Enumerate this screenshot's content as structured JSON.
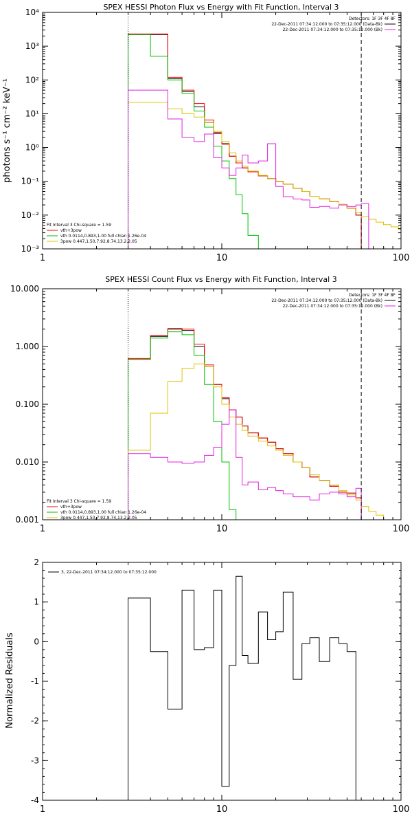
{
  "chart_data": [
    {
      "type": "line",
      "title": "SPEX HESSI Photon Flux vs Energy with Fit Function, Interval 3",
      "xlabel": "",
      "ylabel": "photons s⁻¹ cm⁻² keV⁻¹",
      "xscale": "log",
      "yscale": "log",
      "xlim": [
        1,
        100
      ],
      "ylim": [
        0.001,
        10000
      ],
      "xticks": [
        {
          "v": 1,
          "label": "1"
        },
        {
          "v": 10,
          "label": "10"
        },
        {
          "v": 100,
          "label": "100"
        }
      ],
      "yticks": [
        {
          "v": 0.001,
          "label": "10⁻³"
        },
        {
          "v": 0.01,
          "label": "10⁻²"
        },
        {
          "v": 0.1,
          "label": "10⁻¹"
        },
        {
          "v": 1,
          "label": "10⁰"
        },
        {
          "v": 10,
          "label": "10¹"
        },
        {
          "v": 100,
          "label": "10²"
        },
        {
          "v": 1000,
          "label": "10³"
        },
        {
          "v": 10000,
          "label": "10⁴"
        }
      ],
      "vlines": [
        {
          "x": 3,
          "style": "dotted"
        },
        {
          "x": 60,
          "style": "dashed"
        }
      ],
      "legend_top": {
        "position": "top-right",
        "header": "Detectors: 1F 3F 4F 8F",
        "entries": [
          {
            "label": "22-Dec-2011 07:34:12.000 to 07:35:12.000 (Data-Bk)",
            "color": "#000000"
          },
          {
            "label": "22-Dec-2011 07:34:12.000 to 07:35:12.000 (Bk)",
            "color": "#e020e0"
          }
        ]
      },
      "legend_bottom": {
        "position": "bottom-left",
        "header": "Fit Interval 3   Chi-square = 1.59",
        "entries": [
          {
            "label": "vth+3pow",
            "color": "#ff0000"
          },
          {
            "label": "vth 0.0114,0.893,1.00  full chian 1.26e-04",
            "color": "#00c000"
          },
          {
            "label": "3pow 0.447,1.50,7.92,8.74,13.2,2.05",
            "color": "#e0c000"
          }
        ]
      },
      "bin_edges": [
        3,
        4,
        5,
        6,
        7,
        8,
        9,
        10,
        11,
        12,
        13,
        14,
        16,
        18,
        20,
        22,
        25,
        28,
        31,
        35,
        40,
        45,
        50,
        56,
        60
      ],
      "series": [
        {
          "name": "Data-Bk",
          "color": "#000000",
          "values": [
            2200,
            2200,
            110,
            45,
            16,
            5.5,
            2.6,
            1.3,
            0.55,
            0.35,
            0.25,
            0.19,
            0.145,
            0.12,
            0.1,
            0.082,
            0.062,
            0.05,
            0.036,
            0.03,
            0.025,
            0.021,
            0.016,
            0.01
          ]
        },
        {
          "name": "vth+3pow",
          "color": "#ff0000",
          "values": [
            2300,
            2300,
            120,
            50,
            20,
            6.5,
            2.8,
            1.25,
            0.55,
            0.35,
            0.25,
            0.19,
            0.145,
            0.12,
            0.1,
            0.082,
            0.062,
            0.05,
            0.036,
            0.03,
            0.025,
            0.021,
            0.016,
            0.01
          ]
        },
        {
          "name": "vth",
          "color": "#00c000",
          "values": [
            2200,
            500,
            100,
            40,
            12,
            4,
            1.1,
            0.4,
            0.12,
            0.04,
            0.011,
            0.0025,
            0.0009
          ]
        },
        {
          "name": "3pow",
          "color": "#e0c000",
          "values": [
            22,
            22,
            14,
            10,
            8,
            5.5,
            3,
            1.5,
            0.7,
            0.4,
            0.28,
            0.2,
            0.15,
            0.12,
            0.1,
            0.082,
            0.062,
            0.05,
            0.036,
            0.03,
            0.025,
            0.021,
            0.016,
            0.012,
            0.009,
            0.0075,
            0.0062,
            0.0052,
            0.0045,
            0.0038,
            0.0032
          ]
        },
        {
          "name": "Bk",
          "color": "#e020e0",
          "values": [
            50,
            50,
            7,
            2,
            1.5,
            2.5,
            0.5,
            0.25,
            0.15,
            0.25,
            0.6,
            0.35,
            0.4,
            1.3,
            0.07,
            0.035,
            0.03,
            0.028,
            0.017,
            0.018,
            0.016,
            0.02,
            0.018,
            0.02,
            0.022
          ]
        }
      ]
    },
    {
      "type": "line",
      "title": "SPEX HESSI Count Flux vs Energy with Fit Function, Interval 3",
      "xlabel": "",
      "ylabel": "",
      "xscale": "log",
      "yscale": "log",
      "xlim": [
        1,
        100
      ],
      "ylim": [
        0.001,
        10
      ],
      "xticks": [
        {
          "v": 1,
          "label": "1"
        },
        {
          "v": 10,
          "label": "10"
        },
        {
          "v": 100,
          "label": "100"
        }
      ],
      "yticks": [
        {
          "v": 0.001,
          "label": "0.001"
        },
        {
          "v": 0.01,
          "label": "0.010"
        },
        {
          "v": 0.1,
          "label": "0.100"
        },
        {
          "v": 1,
          "label": "1.000"
        },
        {
          "v": 10,
          "label": "10.000"
        }
      ],
      "vlines": [
        {
          "x": 3,
          "style": "dotted"
        },
        {
          "x": 60,
          "style": "dashed"
        }
      ],
      "legend_top": {
        "position": "top-right",
        "header": "Detectors: 1F 3F 4F 8F",
        "entries": [
          {
            "label": "22-Dec-2011 07:34:12.000 to 07:35:12.000 (Data-Bk)",
            "color": "#000000"
          },
          {
            "label": "22-Dec-2011 07:34:12.000 to 07:35:12.000 (Bk)",
            "color": "#e020e0"
          }
        ]
      },
      "legend_bottom": {
        "position": "bottom-left",
        "header": "Fit Interval 3   Chi-square = 1.59",
        "entries": [
          {
            "label": "vth+3pow",
            "color": "#ff0000"
          },
          {
            "label": "vth 0.0114,0.893,1.00  full chian 1.26e-04",
            "color": "#00c000"
          },
          {
            "label": "3pow 0.447,1.50,7.92,8.74,13.2,2.05",
            "color": "#e0c000"
          }
        ]
      },
      "bin_edges": [
        3,
        4,
        5,
        6,
        7,
        8,
        9,
        10,
        11,
        12,
        13,
        14,
        16,
        18,
        20,
        22,
        25,
        28,
        31,
        35,
        40,
        45,
        50,
        56,
        60
      ],
      "series": [
        {
          "name": "Data-Bk",
          "color": "#000000",
          "values": [
            0.6,
            1.5,
            2.0,
            1.9,
            1.0,
            0.45,
            0.22,
            0.125,
            0.08,
            0.06,
            0.042,
            0.032,
            0.026,
            0.022,
            0.017,
            0.014,
            0.01,
            0.008,
            0.0055,
            0.0048,
            0.0038,
            0.003,
            0.0029,
            0.0024
          ]
        },
        {
          "name": "vth+3pow",
          "color": "#ff0000",
          "values": [
            0.62,
            1.55,
            2.05,
            2.0,
            1.1,
            0.48,
            0.22,
            0.13,
            0.08,
            0.06,
            0.042,
            0.032,
            0.026,
            0.022,
            0.017,
            0.014,
            0.01,
            0.008,
            0.0055,
            0.0048,
            0.0038,
            0.003,
            0.0029,
            0.0024
          ]
        },
        {
          "name": "vth",
          "color": "#00c000",
          "values": [
            0.6,
            1.4,
            1.8,
            1.6,
            0.7,
            0.22,
            0.05,
            0.01,
            0.0015
          ]
        },
        {
          "name": "3pow",
          "color": "#e0c000",
          "values": [
            0.016,
            0.07,
            0.25,
            0.42,
            0.5,
            0.45,
            0.2,
            0.1,
            0.06,
            0.045,
            0.035,
            0.028,
            0.023,
            0.019,
            0.016,
            0.013,
            0.01,
            0.008,
            0.006,
            0.0048,
            0.004,
            0.0032,
            0.0027,
            0.0022,
            0.0017,
            0.0014,
            0.0012,
            0.001
          ]
        },
        {
          "name": "Bk",
          "color": "#e020e0",
          "values": [
            0.014,
            0.012,
            0.01,
            0.0095,
            0.01,
            0.013,
            0.018,
            0.045,
            0.08,
            0.012,
            0.004,
            0.0045,
            0.0033,
            0.0036,
            0.0032,
            0.0028,
            0.0025,
            0.0025,
            0.0022,
            0.0028,
            0.003,
            0.0028,
            0.0025,
            0.0035
          ]
        }
      ]
    },
    {
      "type": "line",
      "title": "",
      "xlabel": "",
      "ylabel": "Normalized Residuals",
      "xscale": "log",
      "yscale": "linear",
      "xlim": [
        1,
        100
      ],
      "ylim": [
        -4,
        2
      ],
      "xticks": [
        {
          "v": 1,
          "label": "1"
        },
        {
          "v": 10,
          "label": "10"
        },
        {
          "v": 100,
          "label": "100"
        }
      ],
      "yticks": [
        {
          "v": -4,
          "label": "-4"
        },
        {
          "v": -3,
          "label": "-3"
        },
        {
          "v": -2,
          "label": "-2"
        },
        {
          "v": -1,
          "label": "-1"
        },
        {
          "v": 0,
          "label": "0"
        },
        {
          "v": 1,
          "label": "1"
        },
        {
          "v": 2,
          "label": "2"
        }
      ],
      "legend_top": {
        "position": "top-left",
        "entries": [
          {
            "label": "3, 22-Dec-2011 07:34:12.000 to 07:35:12.000",
            "color": "#000000"
          }
        ]
      },
      "bin_edges": [
        3,
        4,
        5,
        6,
        7,
        8,
        9,
        10,
        11,
        12,
        13,
        14,
        16,
        18,
        20,
        22,
        25,
        28,
        31,
        35,
        40,
        45,
        50,
        56,
        60
      ],
      "series": [
        {
          "name": "residuals",
          "color": "#000000",
          "values": [
            1.1,
            -0.25,
            -1.7,
            1.3,
            -0.2,
            -0.15,
            1.3,
            -3.65,
            -0.6,
            1.65,
            -0.35,
            -0.55,
            0.75,
            0.05,
            0.25,
            1.25,
            -0.95,
            -0.05,
            0.1,
            -0.5,
            0.1,
            -0.05,
            -0.25
          ]
        }
      ]
    }
  ]
}
